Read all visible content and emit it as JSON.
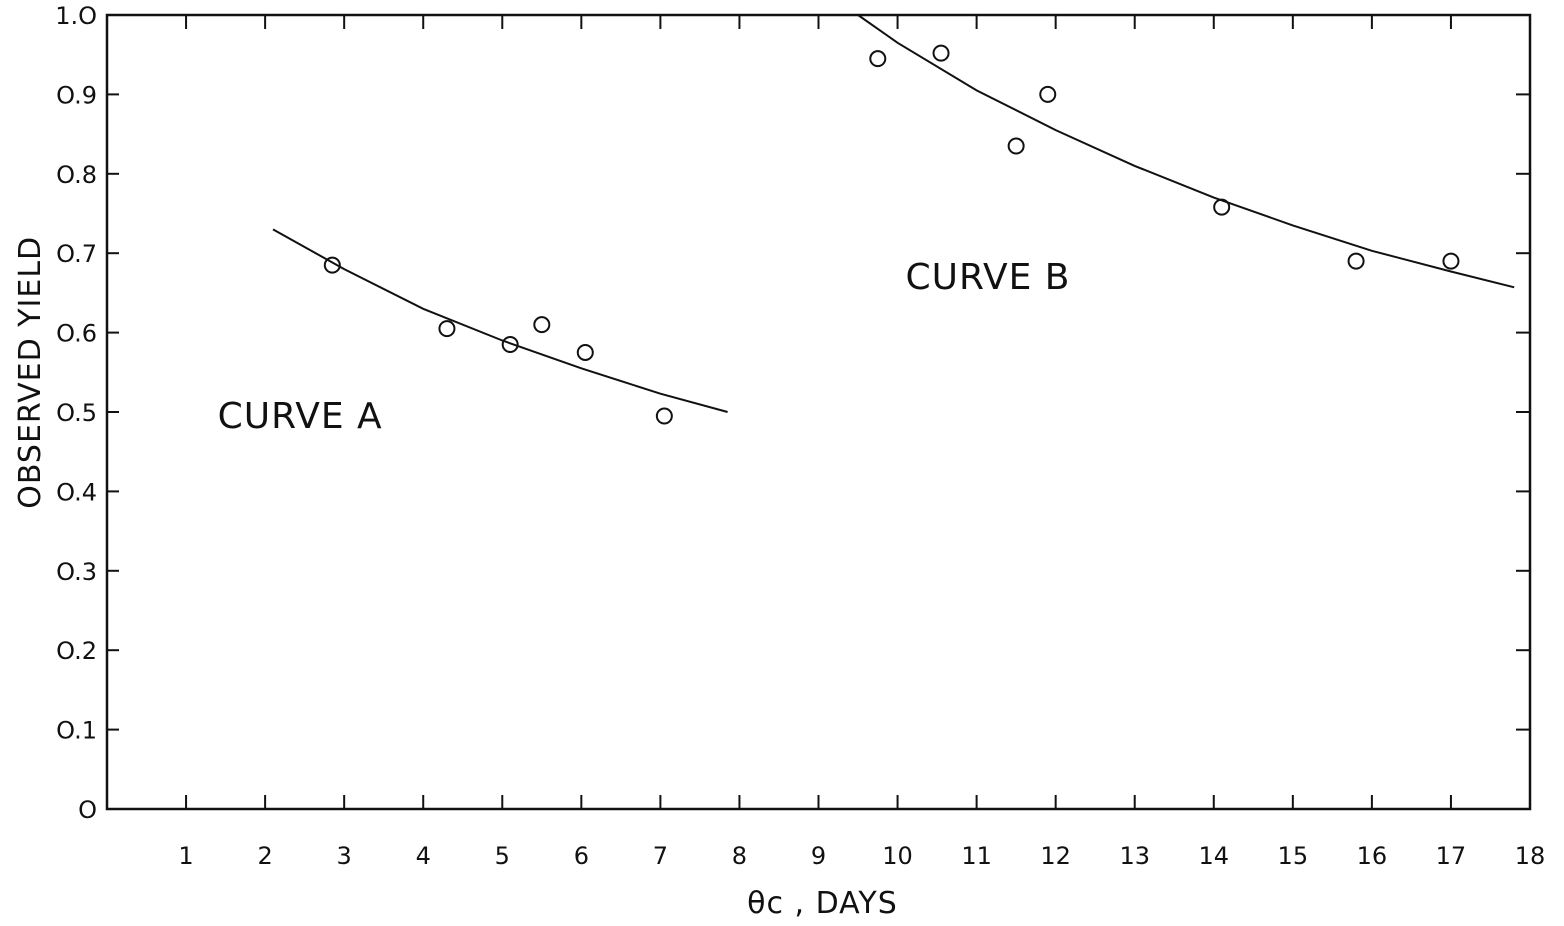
{
  "chart_data": {
    "type": "scatter",
    "xlabel": "θc , DAYS",
    "ylabel": "OBSERVED YIELD",
    "xlim": [
      0,
      18
    ],
    "ylim": [
      0,
      1.0
    ],
    "x_ticks": [
      1,
      2,
      3,
      4,
      5,
      6,
      7,
      8,
      9,
      10,
      11,
      12,
      13,
      14,
      15,
      16,
      17,
      18
    ],
    "y_ticks": [
      "O",
      "O.1",
      "O.2",
      "O.3",
      "O.4",
      "O.5",
      "O.6",
      "O.7",
      "O.8",
      "O.9",
      "1.O"
    ],
    "annotations": [
      "CURVE A",
      "CURVE B"
    ],
    "series": [
      {
        "label": "CURVE A",
        "points": [
          {
            "x": 2.85,
            "y": 0.685
          },
          {
            "x": 4.3,
            "y": 0.605
          },
          {
            "x": 5.1,
            "y": 0.585
          },
          {
            "x": 5.5,
            "y": 0.61
          },
          {
            "x": 6.05,
            "y": 0.575
          },
          {
            "x": 7.05,
            "y": 0.495
          }
        ],
        "curve": [
          {
            "x": 2.1,
            "y": 0.73
          },
          {
            "x": 3.0,
            "y": 0.68
          },
          {
            "x": 4.0,
            "y": 0.63
          },
          {
            "x": 5.0,
            "y": 0.59
          },
          {
            "x": 6.0,
            "y": 0.555
          },
          {
            "x": 7.0,
            "y": 0.523
          },
          {
            "x": 7.85,
            "y": 0.5
          }
        ]
      },
      {
        "label": "CURVE B",
        "points": [
          {
            "x": 9.75,
            "y": 0.945
          },
          {
            "x": 10.55,
            "y": 0.952
          },
          {
            "x": 11.5,
            "y": 0.835
          },
          {
            "x": 11.9,
            "y": 0.9
          },
          {
            "x": 14.1,
            "y": 0.758
          },
          {
            "x": 15.8,
            "y": 0.69
          },
          {
            "x": 17.0,
            "y": 0.69
          }
        ],
        "curve": [
          {
            "x": 9.5,
            "y": 1.0
          },
          {
            "x": 10.0,
            "y": 0.965
          },
          {
            "x": 11.0,
            "y": 0.905
          },
          {
            "x": 12.0,
            "y": 0.855
          },
          {
            "x": 13.0,
            "y": 0.81
          },
          {
            "x": 14.0,
            "y": 0.77
          },
          {
            "x": 15.0,
            "y": 0.735
          },
          {
            "x": 16.0,
            "y": 0.703
          },
          {
            "x": 17.0,
            "y": 0.677
          },
          {
            "x": 17.8,
            "y": 0.657
          }
        ]
      }
    ]
  }
}
